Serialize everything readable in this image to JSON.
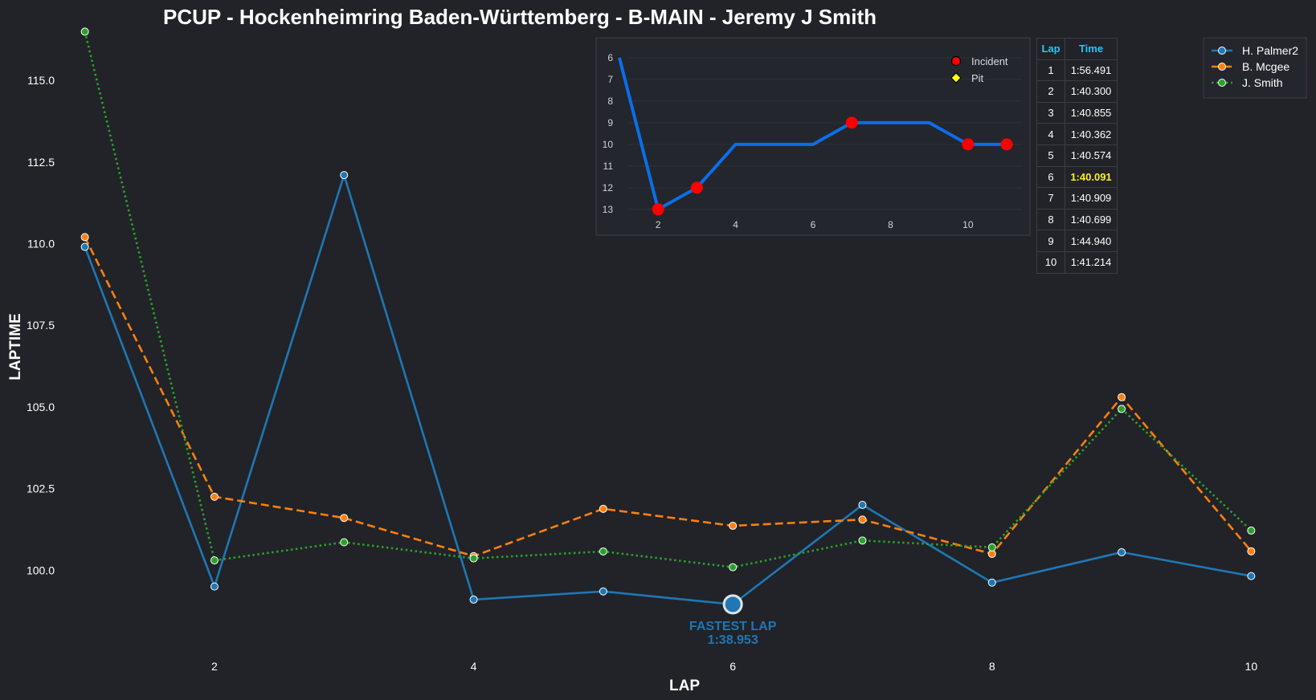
{
  "chart_data": [
    {
      "type": "line",
      "title": "PCUP - Hockenheimring Baden-Württemberg - B-MAIN - Jeremy J Smith",
      "xlabel": "LAP",
      "ylabel": "LAPTIME",
      "x": [
        1,
        2,
        3,
        4,
        5,
        6,
        7,
        8,
        9,
        10
      ],
      "xlim": [
        0.5,
        10.5
      ],
      "ylim": [
        97.5,
        116.6
      ],
      "xticks": [
        2,
        4,
        6,
        8,
        10
      ],
      "yticks": [
        100.0,
        102.5,
        105.0,
        107.5,
        110.0,
        112.5,
        115.0
      ],
      "ytick_labels": [
        "100.0",
        "102.5",
        "105.0",
        "107.5",
        "110.0",
        "112.5",
        "115.0"
      ],
      "legend_position": "top-right",
      "series": [
        {
          "name": "H. Palmer2",
          "color": "#1f77b4",
          "style": "solid",
          "values": [
            109.9,
            99.5,
            112.1,
            99.1,
            99.35,
            98.953,
            102.0,
            99.62,
            100.55,
            99.82
          ]
        },
        {
          "name": "B. Mcgee",
          "color": "#ff7f0e",
          "style": "dashed",
          "values": [
            110.2,
            102.25,
            101.6,
            100.43,
            101.88,
            101.36,
            101.55,
            100.5,
            105.3,
            100.58
          ]
        },
        {
          "name": "J. Smith",
          "color": "#2ca02c",
          "style": "dotted",
          "values": [
            116.491,
            100.3,
            100.855,
            100.362,
            100.574,
            100.091,
            100.909,
            100.699,
            104.94,
            101.214
          ]
        }
      ],
      "annotation": {
        "label": "FASTEST LAP",
        "value": "1:38.953",
        "lap": 6,
        "laptime": 98.953,
        "color": "#1f77b4"
      }
    },
    {
      "type": "line",
      "title": "",
      "x": [
        1,
        2,
        3,
        4,
        5,
        6,
        7,
        8,
        9,
        10,
        11
      ],
      "values": [
        6,
        13,
        12,
        10,
        10,
        10,
        9,
        9,
        9,
        10,
        10
      ],
      "xticks": [
        2,
        4,
        6,
        8,
        10
      ],
      "yticks": [
        6,
        7,
        8,
        9,
        10,
        11,
        12,
        13
      ],
      "ylim_inverted": [
        5.3,
        13.6
      ],
      "xlim": [
        0.4,
        11.6
      ],
      "line_color": "#0a6ee8",
      "incidents": [
        {
          "x": 2,
          "y": 13
        },
        {
          "x": 3,
          "y": 12
        },
        {
          "x": 7,
          "y": 9
        },
        {
          "x": 10,
          "y": 10
        },
        {
          "x": 11,
          "y": 10
        }
      ],
      "pits": [],
      "legend": [
        {
          "label": "Incident",
          "color": "#ff0000",
          "marker": "circle"
        },
        {
          "label": "Pit",
          "color": "#ffff00",
          "marker": "diamond"
        }
      ]
    },
    {
      "type": "table",
      "headers": [
        "Lap",
        "Time"
      ],
      "rows": [
        [
          "1",
          "1:56.491"
        ],
        [
          "2",
          "1:40.300"
        ],
        [
          "3",
          "1:40.855"
        ],
        [
          "4",
          "1:40.362"
        ],
        [
          "5",
          "1:40.574"
        ],
        [
          "6",
          "1:40.091"
        ],
        [
          "7",
          "1:40.909"
        ],
        [
          "8",
          "1:40.699"
        ],
        [
          "9",
          "1:44.940"
        ],
        [
          "10",
          "1:41.214"
        ]
      ],
      "highlight_row": 5,
      "highlight_color": "#ffee22"
    }
  ]
}
